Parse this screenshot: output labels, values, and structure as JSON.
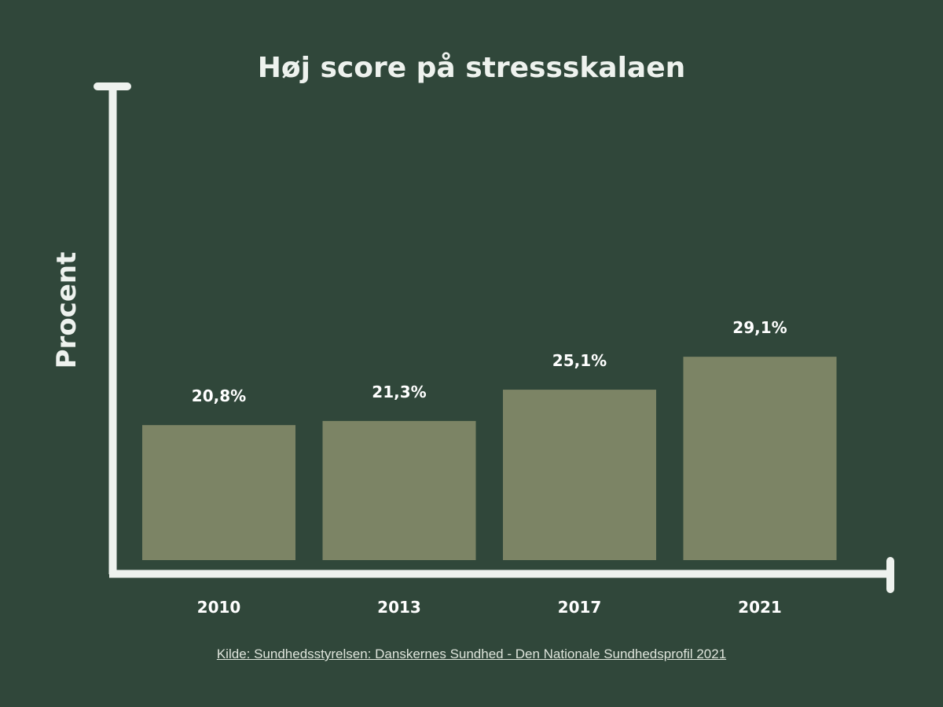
{
  "chart_data": {
    "type": "bar",
    "title": "Høj score på stressskalaen",
    "xlabel": "",
    "ylabel": "Procent",
    "categories": [
      "2010",
      "2013",
      "2017",
      "2021"
    ],
    "values": [
      20.8,
      21.3,
      25.1,
      29.1
    ],
    "data_labels": [
      "20,8%",
      "21,3%",
      "25,1%",
      "29,1%"
    ],
    "ylim": [
      4.4,
      33
    ],
    "grid": false,
    "legend": "none",
    "colors": {
      "background": "#30473a",
      "bar": "#7c8465",
      "axis": "#eef2ee"
    }
  },
  "source": "Kilde: Sundhedsstyrelsen: Danskernes Sundhed - Den Nationale Sundhedsprofil 2021"
}
